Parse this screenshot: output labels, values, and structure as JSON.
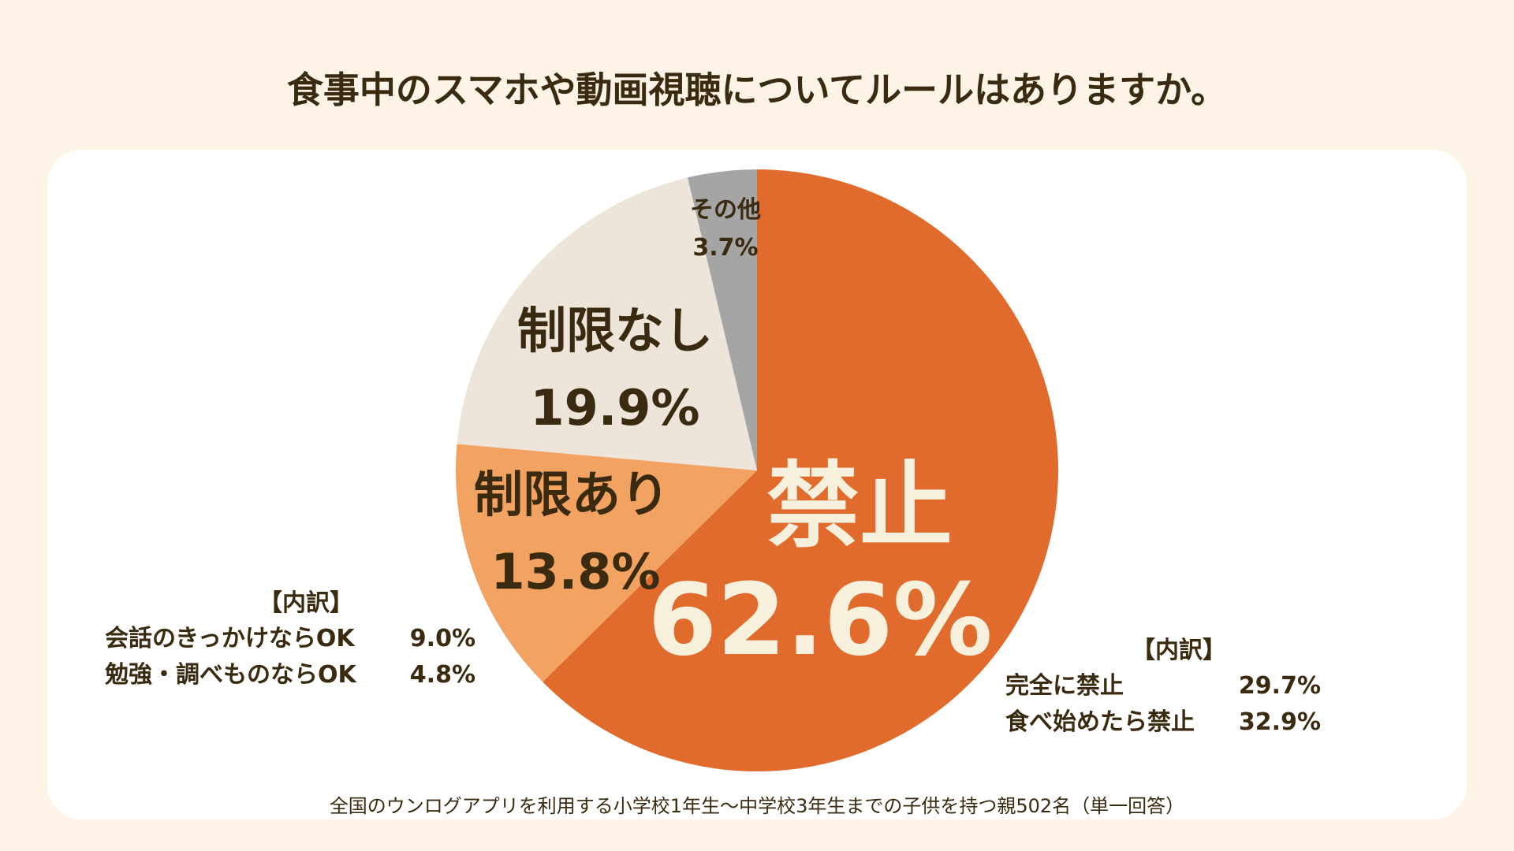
{
  "title": "食事中のスマホや動画視聴についてルールはありますか。",
  "chart_data": {
    "type": "pie",
    "title": "食事中のスマホや動画視聴についてルールはありますか。",
    "slices": [
      {
        "label": "禁止",
        "value": 62.6,
        "value_label": "62.6%",
        "color": "#e06b2c"
      },
      {
        "label": "制限あり",
        "value": 13.8,
        "value_label": "13.8%",
        "color": "#f2a261"
      },
      {
        "label": "制限なし",
        "value": 19.9,
        "value_label": "19.9%",
        "color": "#ede5da"
      },
      {
        "label": "その他",
        "value": 3.7,
        "value_label": "3.7%",
        "color": "#a5a5a5"
      }
    ]
  },
  "breakdown_left": {
    "heading": "【内訳】",
    "rows": [
      {
        "label": "会話のきっかけならOK",
        "value": "9.0%"
      },
      {
        "label": "勉強・調べものならOK",
        "value": "4.8%"
      }
    ]
  },
  "breakdown_right": {
    "heading": "【内訳】",
    "rows": [
      {
        "label": "完全に禁止",
        "value": "29.7%"
      },
      {
        "label": "食べ始めたら禁止",
        "value": "32.9%"
      }
    ]
  },
  "footnote": "全国のウンログアプリを利用する小学校1年生〜中学校3年生までの子供を持つ親502名（単一回答）"
}
